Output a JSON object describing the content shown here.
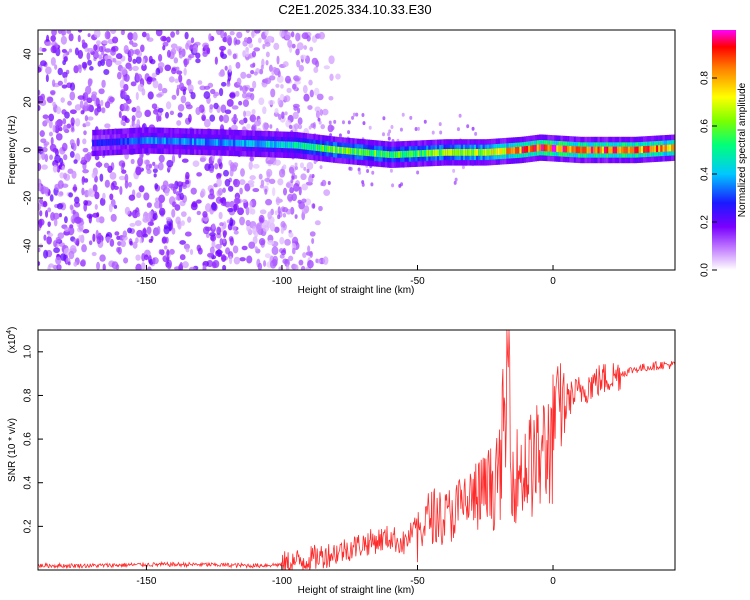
{
  "title": "C2E1.2025.334.10.33.E30",
  "chart_data": [
    {
      "type": "heatmap",
      "xlabel": "Height of straight line (km)",
      "ylabel": "Frequency (Hz)",
      "xlim": [
        -190,
        45
      ],
      "ylim": [
        -50,
        50
      ],
      "xticks": [
        -150,
        -100,
        -50,
        0
      ],
      "yticks": [
        -40,
        -20,
        0,
        20,
        40
      ],
      "colorbar": {
        "label": "Normalized spectral amplitude",
        "range": [
          0,
          1
        ],
        "ticks": [
          "0.0",
          "0.2",
          "0.4",
          "0.6",
          "0.8"
        ],
        "colormap": "rainbow (white-purple-blue-cyan-green-yellow-red-magenta)"
      },
      "description_values": {
        "noise_region_x": [
          -190,
          -98
        ],
        "noise_amplitude": 0.1,
        "signal_band_center_hz": 0,
        "signal_band": [
          {
            "x": -168,
            "center_hz": 3,
            "amplitude": 0.25
          },
          {
            "x": -150,
            "center_hz": 4,
            "amplitude": 0.35
          },
          {
            "x": -120,
            "center_hz": 3,
            "amplitude": 0.35
          },
          {
            "x": -95,
            "center_hz": 2,
            "amplitude": 0.45
          },
          {
            "x": -80,
            "center_hz": 0,
            "amplitude": 0.6
          },
          {
            "x": -60,
            "center_hz": -2,
            "amplitude": 0.55
          },
          {
            "x": -40,
            "center_hz": -1,
            "amplitude": 0.6
          },
          {
            "x": -25,
            "center_hz": -1,
            "amplitude": 0.65
          },
          {
            "x": -12,
            "center_hz": 0,
            "amplitude": 0.85
          },
          {
            "x": -5,
            "center_hz": 1,
            "amplitude": 0.9
          },
          {
            "x": 10,
            "center_hz": 0,
            "amplitude": 0.85
          },
          {
            "x": 30,
            "center_hz": 0,
            "amplitude": 0.85
          },
          {
            "x": 45,
            "center_hz": 1,
            "amplitude": 0.8
          }
        ]
      }
    },
    {
      "type": "line",
      "xlabel": "Height of straight line (km)",
      "ylabel": "SNR (10 * v/v)",
      "y_multiplier": "(x10",
      "y_multiplier_exponent": "4",
      "xlim": [
        -190,
        45
      ],
      "ylim": [
        0,
        1.1
      ],
      "xticks": [
        -150,
        -100,
        -50,
        0
      ],
      "yticks": [
        "0.2",
        "0.4",
        "0.6",
        "0.8",
        "1.0"
      ],
      "color": "#ff2a2a",
      "series": [
        {
          "x": [
            -190,
            -170,
            -150,
            -130,
            -110,
            -100,
            -90,
            -80,
            -70,
            -60,
            -55,
            -50,
            -45,
            -40,
            -35,
            -30,
            -25,
            -20,
            -16,
            -15,
            -10,
            -5,
            0,
            5,
            10,
            15,
            20,
            25,
            30,
            35,
            40,
            45
          ],
          "y": [
            0.02,
            0.02,
            0.025,
            0.025,
            0.02,
            0.025,
            0.05,
            0.08,
            0.12,
            0.15,
            0.12,
            0.2,
            0.3,
            0.28,
            0.33,
            0.38,
            0.42,
            0.48,
            1.1,
            0.5,
            0.55,
            0.6,
            0.7,
            0.78,
            0.82,
            0.86,
            0.88,
            0.9,
            0.92,
            0.93,
            0.94,
            0.94
          ]
        }
      ]
    }
  ]
}
